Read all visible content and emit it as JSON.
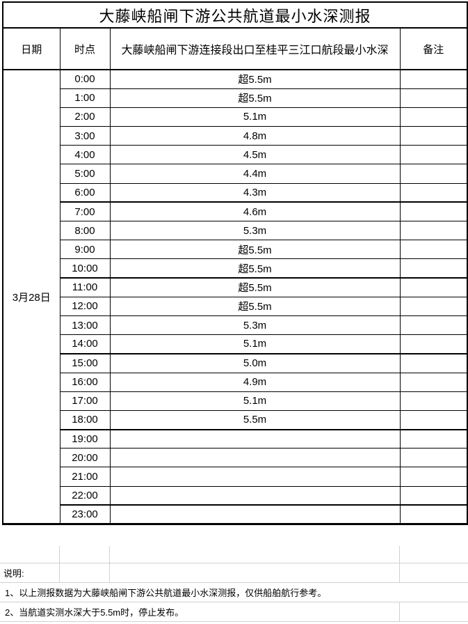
{
  "title": "大藤峡船闸下游公共航道最小水深测报",
  "table": {
    "headers": {
      "date": "日期",
      "time": "时点",
      "depth": "大藤峡船闸下游连接段出口至桂平三江口航段最小水深",
      "remark": "备注"
    },
    "date_label": "3月28日",
    "thick_after": [
      "6:00",
      "10:00",
      "14:00",
      "18:00",
      "22:00"
    ],
    "rows": [
      {
        "time": "0:00",
        "depth": "超5.5m",
        "remark": ""
      },
      {
        "time": "1:00",
        "depth": "超5.5m",
        "remark": ""
      },
      {
        "time": "2:00",
        "depth": "5.1m",
        "remark": ""
      },
      {
        "time": "3:00",
        "depth": "4.8m",
        "remark": ""
      },
      {
        "time": "4:00",
        "depth": "4.5m",
        "remark": ""
      },
      {
        "time": "5:00",
        "depth": "4.4m",
        "remark": ""
      },
      {
        "time": "6:00",
        "depth": "4.3m",
        "remark": ""
      },
      {
        "time": "7:00",
        "depth": "4.6m",
        "remark": ""
      },
      {
        "time": "8:00",
        "depth": "5.3m",
        "remark": ""
      },
      {
        "time": "9:00",
        "depth": "超5.5m",
        "remark": ""
      },
      {
        "time": "10:00",
        "depth": "超5.5m",
        "remark": ""
      },
      {
        "time": "11:00",
        "depth": "超5.5m",
        "remark": ""
      },
      {
        "time": "12:00",
        "depth": "超5.5m",
        "remark": ""
      },
      {
        "time": "13:00",
        "depth": "5.3m",
        "remark": ""
      },
      {
        "time": "14:00",
        "depth": "5.1m",
        "remark": ""
      },
      {
        "time": "15:00",
        "depth": "5.0m",
        "remark": ""
      },
      {
        "time": "16:00",
        "depth": "4.9m",
        "remark": ""
      },
      {
        "time": "17:00",
        "depth": "5.1m",
        "remark": ""
      },
      {
        "time": "18:00",
        "depth": "5.5m",
        "remark": ""
      },
      {
        "time": "19:00",
        "depth": "",
        "remark": ""
      },
      {
        "time": "20:00",
        "depth": "",
        "remark": ""
      },
      {
        "time": "21:00",
        "depth": "",
        "remark": ""
      },
      {
        "time": "22:00",
        "depth": "",
        "remark": ""
      },
      {
        "time": "23:00",
        "depth": "",
        "remark": ""
      }
    ]
  },
  "notes": {
    "label": "说明:",
    "items": [
      "1、以上测报数据为大藤峡船闸下游公共航道最小水深测报，仅供船舶航行参考。",
      "2、当航道实测水深大于5.5m时，停止发布。"
    ]
  },
  "colors": {
    "table_border": "#000000",
    "gridline": "#d0d0d0",
    "background": "#ffffff",
    "text": "#000000"
  }
}
